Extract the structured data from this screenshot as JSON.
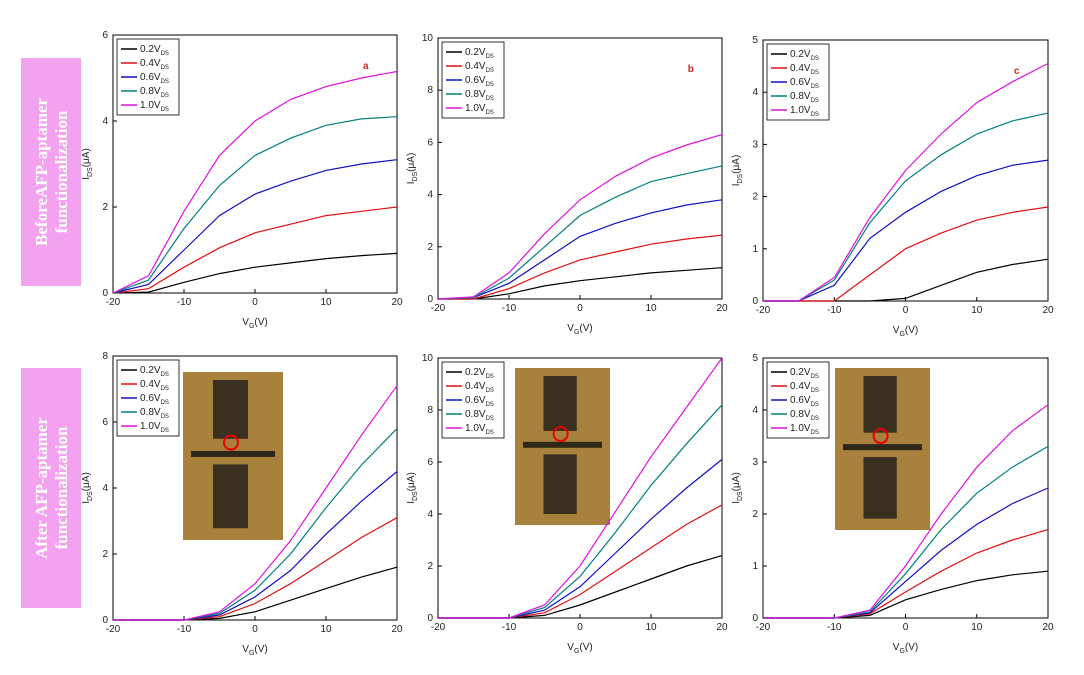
{
  "row_labels": [
    [
      "BeforeAFP-aptamer",
      "functionalization"
    ],
    [
      "After AFP-aptamer",
      "functionalization"
    ]
  ],
  "chart_data": [
    {
      "type": "line",
      "panel_label": "a",
      "xlabel": {
        "main": "V",
        "sub": "G",
        "unit": "(V)"
      },
      "ylabel": {
        "main": "I",
        "sub": "DS",
        "unit": "(μA)"
      },
      "x": [
        -20,
        -15,
        -10,
        -5,
        0,
        5,
        10,
        15,
        20
      ],
      "xlim": [
        -20,
        20
      ],
      "xticks": [
        -20,
        -10,
        0,
        10,
        20
      ],
      "ylim": [
        0,
        6
      ],
      "yticks": [
        0,
        2,
        4,
        6
      ],
      "series": [
        {
          "name": "0.2V",
          "sub": "DS",
          "color": "#000000",
          "values": [
            0,
            0.02,
            0.25,
            0.45,
            0.6,
            0.7,
            0.8,
            0.87,
            0.92
          ]
        },
        {
          "name": "0.4V",
          "sub": "DS",
          "color": "#e01010",
          "values": [
            0,
            0.1,
            0.6,
            1.05,
            1.4,
            1.6,
            1.8,
            1.9,
            2.0
          ]
        },
        {
          "name": "0.6V",
          "sub": "DS",
          "color": "#1010c0",
          "values": [
            0,
            0.2,
            1.0,
            1.8,
            2.3,
            2.6,
            2.85,
            3.0,
            3.1
          ]
        },
        {
          "name": "0.8V",
          "sub": "DS",
          "color": "#008080",
          "values": [
            0,
            0.3,
            1.5,
            2.5,
            3.2,
            3.6,
            3.9,
            4.05,
            4.1
          ]
        },
        {
          "name": "1.0V",
          "sub": "DS",
          "color": "#e010e0",
          "values": [
            0,
            0.4,
            1.9,
            3.2,
            4.0,
            4.5,
            4.8,
            5.0,
            5.15
          ]
        }
      ]
    },
    {
      "type": "line",
      "panel_label": "b",
      "xlabel": {
        "main": "V",
        "sub": "G",
        "unit": "(V)"
      },
      "ylabel": {
        "main": "I",
        "sub": "DS",
        "unit": "(μA)"
      },
      "x": [
        -20,
        -15,
        -10,
        -5,
        0,
        5,
        10,
        15,
        20
      ],
      "xlim": [
        -20,
        20
      ],
      "xticks": [
        -20,
        -10,
        0,
        10,
        20
      ],
      "ylim": [
        0,
        10
      ],
      "yticks": [
        0,
        2,
        4,
        6,
        8,
        10
      ],
      "series": [
        {
          "name": "0.2V",
          "sub": "DS",
          "color": "#000000",
          "values": [
            0,
            0,
            0.2,
            0.5,
            0.7,
            0.85,
            1.0,
            1.1,
            1.2
          ]
        },
        {
          "name": "0.4V",
          "sub": "DS",
          "color": "#e01010",
          "values": [
            0,
            0,
            0.4,
            1.0,
            1.5,
            1.8,
            2.1,
            2.3,
            2.45
          ]
        },
        {
          "name": "0.6V",
          "sub": "DS",
          "color": "#1010c0",
          "values": [
            0,
            0.05,
            0.6,
            1.5,
            2.4,
            2.9,
            3.3,
            3.6,
            3.8
          ]
        },
        {
          "name": "0.8V",
          "sub": "DS",
          "color": "#008080",
          "values": [
            0,
            0.05,
            0.8,
            2.0,
            3.2,
            3.9,
            4.5,
            4.8,
            5.1
          ]
        },
        {
          "name": "1.0V",
          "sub": "DS",
          "color": "#e010e0",
          "values": [
            0,
            0.08,
            1.0,
            2.5,
            3.8,
            4.7,
            5.4,
            5.9,
            6.3
          ]
        }
      ]
    },
    {
      "type": "line",
      "panel_label": "c",
      "xlabel": {
        "main": "V",
        "sub": "G",
        "unit": "(V)"
      },
      "ylabel": {
        "main": "I",
        "sub": "DS",
        "unit": "(μA)"
      },
      "x": [
        -20,
        -15,
        -10,
        -5,
        0,
        5,
        10,
        15,
        20
      ],
      "xlim": [
        -20,
        20
      ],
      "xticks": [
        -20,
        -10,
        0,
        10,
        20
      ],
      "ylim": [
        0,
        5
      ],
      "yticks": [
        0,
        1,
        2,
        3,
        4,
        5
      ],
      "series": [
        {
          "name": "0.2V",
          "sub": "DS",
          "color": "#000000",
          "values": [
            0,
            0,
            0,
            0,
            0.05,
            0.3,
            0.55,
            0.7,
            0.8
          ]
        },
        {
          "name": "0.4V",
          "sub": "DS",
          "color": "#e01010",
          "values": [
            0,
            0,
            0,
            0.5,
            1.0,
            1.3,
            1.55,
            1.7,
            1.8
          ]
        },
        {
          "name": "0.6V",
          "sub": "DS",
          "color": "#1010c0",
          "values": [
            0,
            0,
            0.3,
            1.2,
            1.7,
            2.1,
            2.4,
            2.6,
            2.7
          ]
        },
        {
          "name": "0.8V",
          "sub": "DS",
          "color": "#008080",
          "values": [
            0,
            0,
            0.4,
            1.5,
            2.3,
            2.8,
            3.2,
            3.45,
            3.6
          ]
        },
        {
          "name": "1.0V",
          "sub": "DS",
          "color": "#e010e0",
          "values": [
            0,
            0,
            0.45,
            1.6,
            2.5,
            3.2,
            3.8,
            4.2,
            4.55
          ]
        }
      ]
    },
    {
      "type": "line",
      "xlabel": {
        "main": "V",
        "sub": "G",
        "unit": "(V)"
      },
      "ylabel": {
        "main": "I",
        "sub": "DS",
        "unit": "(μA)"
      },
      "x": [
        -20,
        -15,
        -10,
        -5,
        0,
        5,
        10,
        15,
        20
      ],
      "xlim": [
        -20,
        20
      ],
      "xticks": [
        -20,
        -10,
        0,
        10,
        20
      ],
      "ylim": [
        0,
        8
      ],
      "yticks": [
        0,
        2,
        4,
        6,
        8
      ],
      "series": [
        {
          "name": "0.2V",
          "sub": "DS",
          "color": "#000000",
          "values": [
            0,
            0,
            0,
            0.05,
            0.25,
            0.6,
            0.95,
            1.3,
            1.6
          ]
        },
        {
          "name": "0.4V",
          "sub": "DS",
          "color": "#e01010",
          "values": [
            0,
            0,
            0,
            0.1,
            0.5,
            1.1,
            1.8,
            2.5,
            3.1
          ]
        },
        {
          "name": "0.6V",
          "sub": "DS",
          "color": "#1010c0",
          "values": [
            0,
            0,
            0,
            0.15,
            0.7,
            1.5,
            2.6,
            3.6,
            4.5
          ]
        },
        {
          "name": "0.8V",
          "sub": "DS",
          "color": "#008080",
          "values": [
            0,
            0,
            0,
            0.2,
            0.9,
            2.0,
            3.4,
            4.7,
            5.8
          ]
        },
        {
          "name": "1.0V",
          "sub": "DS",
          "color": "#e010e0",
          "values": [
            0,
            0,
            0,
            0.25,
            1.1,
            2.4,
            4.0,
            5.6,
            7.1
          ]
        }
      ]
    },
    {
      "type": "line",
      "xlabel": {
        "main": "V",
        "sub": "G",
        "unit": "(V)"
      },
      "ylabel": {
        "main": "I",
        "sub": "DS",
        "unit": "(μA)"
      },
      "x": [
        -20,
        -15,
        -10,
        -5,
        0,
        5,
        10,
        15,
        20
      ],
      "xlim": [
        -20,
        20
      ],
      "xticks": [
        -20,
        -10,
        0,
        10,
        20
      ],
      "ylim": [
        0,
        10
      ],
      "yticks": [
        0,
        2,
        4,
        6,
        8,
        10
      ],
      "series": [
        {
          "name": "0.2V",
          "sub": "DS",
          "color": "#000000",
          "values": [
            0,
            0,
            0,
            0.1,
            0.5,
            1.0,
            1.5,
            2.0,
            2.4
          ]
        },
        {
          "name": "0.4V",
          "sub": "DS",
          "color": "#e01010",
          "values": [
            0,
            0,
            0,
            0.2,
            0.9,
            1.8,
            2.7,
            3.6,
            4.35
          ]
        },
        {
          "name": "0.6V",
          "sub": "DS",
          "color": "#1010c0",
          "values": [
            0,
            0,
            0,
            0.3,
            1.2,
            2.5,
            3.8,
            5.0,
            6.1
          ]
        },
        {
          "name": "0.8V",
          "sub": "DS",
          "color": "#008080",
          "values": [
            0,
            0,
            0,
            0.4,
            1.6,
            3.3,
            5.1,
            6.7,
            8.2
          ]
        },
        {
          "name": "1.0V",
          "sub": "DS",
          "color": "#e010e0",
          "values": [
            0,
            0,
            0,
            0.5,
            2.0,
            4.1,
            6.2,
            8.1,
            10.0
          ]
        }
      ]
    },
    {
      "type": "line",
      "xlabel": {
        "main": "V",
        "sub": "G",
        "unit": "(V)"
      },
      "ylabel": {
        "main": "I",
        "sub": "DS",
        "unit": "(μA)"
      },
      "x": [
        -20,
        -15,
        -10,
        -5,
        0,
        5,
        10,
        15,
        20
      ],
      "xlim": [
        -20,
        20
      ],
      "xticks": [
        -20,
        -10,
        0,
        10,
        20
      ],
      "ylim": [
        0,
        5
      ],
      "yticks": [
        0,
        1,
        2,
        3,
        4,
        5
      ],
      "series": [
        {
          "name": "0.2V",
          "sub": "DS",
          "color": "#000000",
          "values": [
            0,
            0,
            0,
            0.05,
            0.35,
            0.55,
            0.72,
            0.83,
            0.9
          ]
        },
        {
          "name": "0.4V",
          "sub": "DS",
          "color": "#e01010",
          "values": [
            0,
            0,
            0,
            0.08,
            0.5,
            0.9,
            1.25,
            1.5,
            1.7
          ]
        },
        {
          "name": "0.6V",
          "sub": "DS",
          "color": "#1010c0",
          "values": [
            0,
            0,
            0,
            0.1,
            0.7,
            1.3,
            1.8,
            2.2,
            2.5
          ]
        },
        {
          "name": "0.8V",
          "sub": "DS",
          "color": "#008080",
          "values": [
            0,
            0,
            0,
            0.12,
            0.85,
            1.7,
            2.4,
            2.9,
            3.3
          ]
        },
        {
          "name": "1.0V",
          "sub": "DS",
          "color": "#e010e0",
          "values": [
            0,
            0,
            0,
            0.15,
            1.0,
            2.0,
            2.9,
            3.6,
            4.1
          ]
        }
      ]
    }
  ]
}
